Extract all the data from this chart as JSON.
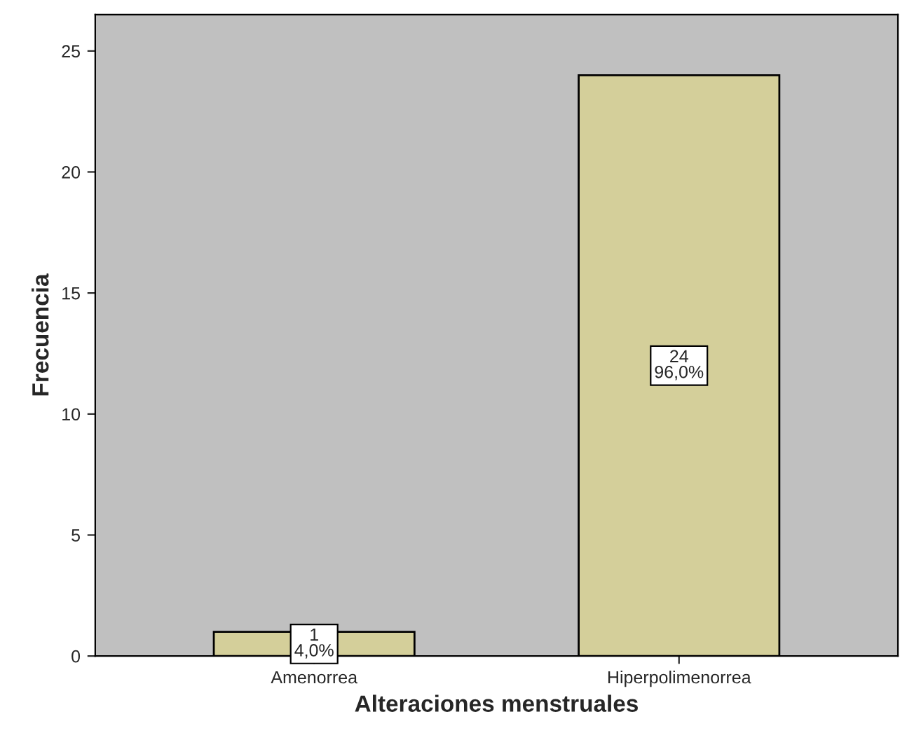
{
  "chart_data": {
    "type": "bar",
    "xlabel": "Alteraciones menstruales",
    "ylabel": "Frecuencia",
    "categories": [
      "Amenorrea",
      "Hiperpolimenorrea"
    ],
    "values": [
      1,
      24
    ],
    "value_labels": [
      "1\n4,0%",
      "24\n96,0%"
    ],
    "color": "#d4cf9a",
    "ylim": [
      0,
      26.5
    ],
    "yticks": [
      0,
      5,
      10,
      15,
      20,
      25
    ]
  }
}
